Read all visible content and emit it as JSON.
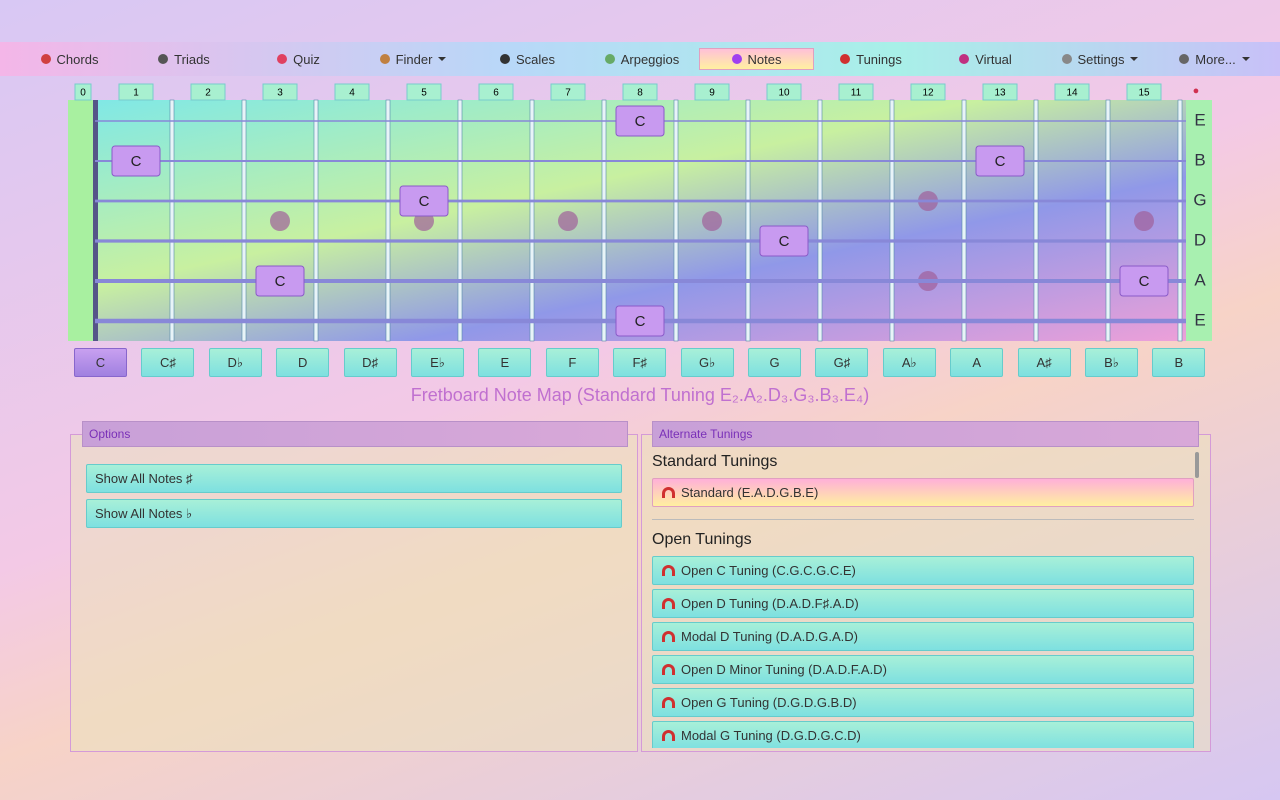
{
  "nav": {
    "items": [
      "Chords",
      "Triads",
      "Quiz",
      "Finder",
      "Scales",
      "Arpeggios",
      "Notes",
      "Tunings",
      "Virtual",
      "Settings",
      "More..."
    ]
  },
  "fretboard": {
    "frets": [
      "0",
      "1",
      "2",
      "3",
      "4",
      "5",
      "6",
      "7",
      "8",
      "9",
      "10",
      "11",
      "12",
      "13",
      "14",
      "15"
    ],
    "strings": [
      "E",
      "B",
      "G",
      "D",
      "A",
      "E"
    ],
    "markers": [
      "C",
      "C",
      "C",
      "C",
      "C",
      "C",
      "C",
      "C"
    ]
  },
  "notes": [
    "C",
    "C♯",
    "D♭",
    "D",
    "D♯",
    "E♭",
    "E",
    "F",
    "F♯",
    "G♭",
    "G",
    "G♯",
    "A♭",
    "A",
    "A♯",
    "B♭",
    "B"
  ],
  "title": "Fretboard Note Map (Standard Tuning E₂.A₂.D₃.G₃.B₃.E₄)",
  "options": {
    "title": "Options",
    "buttons": [
      "Show All Notes ♯",
      "Show All Notes ♭"
    ]
  },
  "tunings": {
    "title": "Alternate Tunings",
    "groups": [
      {
        "title": "Standard Tunings",
        "items": [
          "Standard (E.A.D.G.B.E)"
        ]
      },
      {
        "title": "Open Tunings",
        "items": [
          "Open C Tuning (C.G.C.G.C.E)",
          "Open D Tuning (D.A.D.F♯.A.D)",
          "Modal D Tuning (D.A.D.G.A.D)",
          "Open D Minor Tuning (D.A.D.F.A.D)",
          "Open G Tuning (D.G.D.G.B.D)",
          "Modal G Tuning (D.G.D.G.C.D)"
        ]
      }
    ]
  }
}
